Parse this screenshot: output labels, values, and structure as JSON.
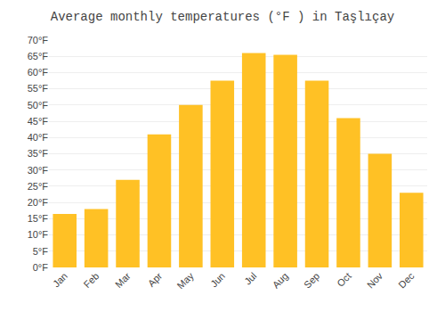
{
  "chart_data": {
    "type": "bar",
    "title": "Average monthly temperatures (°F ) in Taşlıçay",
    "categories": [
      "Jan",
      "Feb",
      "Mar",
      "Apr",
      "May",
      "Jun",
      "Jul",
      "Aug",
      "Sep",
      "Oct",
      "Nov",
      "Dec"
    ],
    "values": [
      16.5,
      18,
      27,
      41,
      50,
      57.5,
      66,
      65.5,
      57.5,
      46,
      35,
      23
    ],
    "color": "#FFC125",
    "ylim": [
      0,
      70
    ],
    "yticks": [
      {
        "value": 0,
        "label": "0°F"
      },
      {
        "value": 5,
        "label": "5°F"
      },
      {
        "value": 10,
        "label": "10°F"
      },
      {
        "value": 15,
        "label": "15°F"
      },
      {
        "value": 20,
        "label": "20°F"
      },
      {
        "value": 25,
        "label": "25°F"
      },
      {
        "value": 30,
        "label": "30°F"
      },
      {
        "value": 35,
        "label": "35°F"
      },
      {
        "value": 40,
        "label": "40°F"
      },
      {
        "value": 45,
        "label": "45°F"
      },
      {
        "value": 50,
        "label": "50°F"
      },
      {
        "value": 55,
        "label": "55°F"
      },
      {
        "value": 60,
        "label": "60°F"
      },
      {
        "value": 65,
        "label": "65°F"
      },
      {
        "value": 70,
        "label": "70°F"
      }
    ],
    "grid": true
  }
}
